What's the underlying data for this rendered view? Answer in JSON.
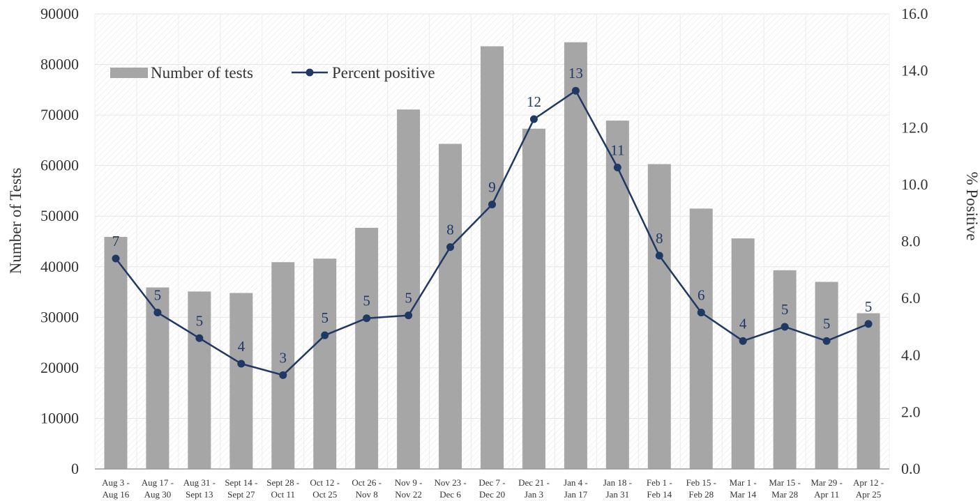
{
  "chart_data": {
    "type": "bar+line",
    "categories": [
      [
        "Aug 3 -",
        "Aug 16"
      ],
      [
        "Aug 17 -",
        "Aug 30"
      ],
      [
        "Aug 31 -",
        "Sept 13"
      ],
      [
        "Sept 14 -",
        "Sept 27"
      ],
      [
        "Sept 28 -",
        "Oct 11"
      ],
      [
        "Oct 12 -",
        "Oct 25"
      ],
      [
        "Oct 26 -",
        "Nov 8"
      ],
      [
        "Nov 9 -",
        "Nov 22"
      ],
      [
        "Nov 23 -",
        "Dec 6"
      ],
      [
        "Dec 7 -",
        "Dec 20"
      ],
      [
        "Dec 21 -",
        "Jan 3"
      ],
      [
        "Jan 4 -",
        "Jan 17"
      ],
      [
        "Jan 18 -",
        "Jan 31"
      ],
      [
        "Feb 1 -",
        "Feb 14"
      ],
      [
        "Feb 15 -",
        "Feb 28"
      ],
      [
        "Mar 1 -",
        "Mar 14"
      ],
      [
        "Mar 15 -",
        "Mar 28"
      ],
      [
        "Mar 29 -",
        "Apr 11"
      ],
      [
        "Apr 12 -",
        "Apr 25"
      ]
    ],
    "series": [
      {
        "name": "Number of tests",
        "type": "bar",
        "axis": "left",
        "color": "#a6a6a6",
        "values": [
          45900,
          35900,
          35100,
          34800,
          40900,
          41600,
          47700,
          71100,
          64300,
          83600,
          67300,
          84400,
          68900,
          60300,
          51500,
          45600,
          39300,
          37000,
          30800
        ]
      },
      {
        "name": "Percent positive",
        "type": "line",
        "axis": "right",
        "color": "#1f3864",
        "values": [
          7.4,
          5.5,
          4.6,
          3.7,
          3.3,
          4.7,
          5.3,
          5.4,
          7.8,
          9.3,
          12.3,
          13.3,
          10.6,
          7.5,
          5.5,
          4.5,
          5.0,
          4.5,
          5.1
        ],
        "labels": [
          "7",
          "5",
          "5",
          "4",
          "3",
          "5",
          "5",
          "5",
          "8",
          "9",
          "12",
          "13",
          "11",
          "8",
          "6",
          "4",
          "5",
          "5",
          "5"
        ]
      }
    ],
    "ylabel": "Number of Tests",
    "y2label": "% Positive",
    "ylim": [
      0,
      90000
    ],
    "y2lim": [
      0,
      16
    ],
    "yticks": [
      "0",
      "10000",
      "20000",
      "30000",
      "40000",
      "50000",
      "60000",
      "70000",
      "80000",
      "90000"
    ],
    "y2ticks": [
      "0.0",
      "2.0",
      "4.0",
      "6.0",
      "8.0",
      "10.0",
      "12.0",
      "14.0",
      "16.0"
    ],
    "grid": true,
    "legend_position": "top-left"
  }
}
